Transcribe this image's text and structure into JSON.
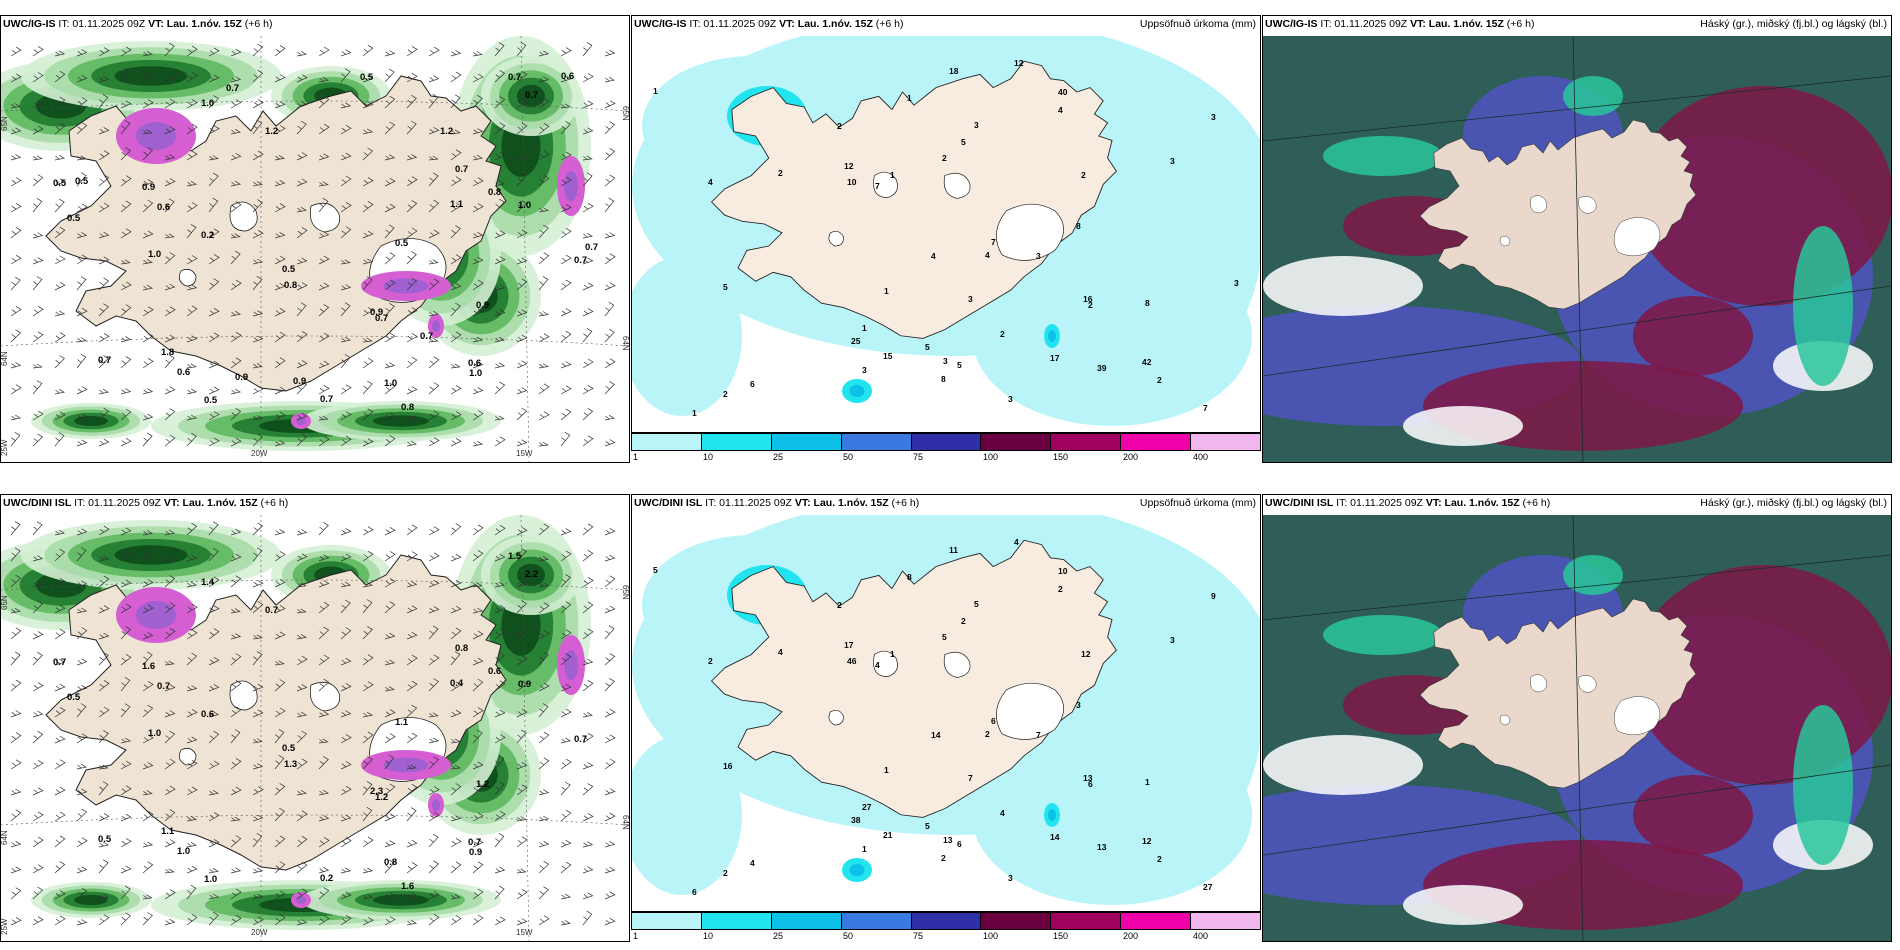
{
  "panels": {
    "p1": {
      "title_bold": "UWC/IG-IS",
      "run": " IT: 01.11.2025 09Z ",
      "vt_label": "VT:",
      "vt_value": " Lau. 1.nóv. 15Z",
      "lead": " (+6 h)",
      "right": ""
    },
    "p2": {
      "title_bold": "UWC/IG-IS",
      "run": " IT: 01.11.2025 09Z ",
      "vt_label": "VT:",
      "vt_value": " Lau. 1.nóv. 15Z",
      "lead": " (+6 h)",
      "right": "Uppsöfnuð úrkoma (mm)"
    },
    "p3": {
      "title_bold": "UWC/IG-IS",
      "run": " IT: 01.11.2025 09Z ",
      "vt_label": "VT:",
      "vt_value": " Lau. 1.nóv. 15Z",
      "lead": " (+6 h)",
      "right": "Háský (gr.), miðský (fj.bl.) og lágský (bl.)"
    },
    "p4": {
      "title_bold": "UWC/DINI ISL",
      "run": " IT: 01.11.2025 09Z ",
      "vt_label": "VT:",
      "vt_value": " Lau. 1.nóv. 15Z",
      "lead": " (+6 h)",
      "right": ""
    },
    "p5": {
      "title_bold": "UWC/DINI ISL",
      "run": " IT: 01.11.2025 09Z ",
      "vt_label": "VT:",
      "vt_value": " Lau. 1.nóv. 15Z",
      "lead": " (+6 h)",
      "right": "Uppsöfnuð úrkoma (mm)"
    },
    "p6": {
      "title_bold": "UWC/DINI ISL",
      "run": " IT: 01.11.2025 09Z ",
      "vt_label": "VT:",
      "vt_value": " Lau. 1.nóv. 15Z",
      "lead": " (+6 h)",
      "right": "Háský (gr.), miðský (fj.bl.) og lágský (bl.)"
    }
  },
  "coords": {
    "lat65": "65N",
    "lat64": "64N",
    "lon25": "25W",
    "lon20": "20W",
    "lon15": "15W"
  },
  "colorbar": {
    "labels": [
      "1",
      "10",
      "25",
      "50",
      "75",
      "100",
      "150",
      "200",
      "400"
    ],
    "colors": [
      "#b8f4f8",
      "#22e4ef",
      "#0cc0e8",
      "#3a7ae0",
      "#2f2fa8",
      "#6a0040",
      "#a0005e",
      "#f000a8",
      "#f2b6ee"
    ]
  },
  "wind_values_top": [
    "0.8",
    "1.0",
    "1.8",
    "0.9",
    "0.8",
    "1.0",
    "0.7",
    "0.2",
    "0.8",
    "0.6",
    "0.7",
    "0.5",
    "0.5",
    "0.9",
    "1.1",
    "0.7",
    "0.5",
    "0.7",
    "0.9",
    "1.0",
    "0.6",
    "0.7",
    "0.5",
    "1.0",
    "0.5",
    "0.7",
    "1.0",
    "0.6",
    "0.7",
    "1.2",
    "0.7",
    "0.6",
    "1.2",
    "0.9",
    "0.7",
    "0.9",
    "0.5",
    "0.5",
    "0.7"
  ],
  "wind_values_bottom": [
    "1.6",
    "1.4",
    "1.1",
    "1.6",
    "0.6",
    "0.8",
    "0.7",
    "0.6",
    "1.3",
    "1.0",
    "0.5",
    "0.7",
    "0.5",
    "2.3",
    "0.4",
    "1.5",
    "0.5",
    "2.2",
    "1.2",
    "0.9",
    "0.7",
    "1.2",
    "1.0",
    "0.9",
    "1.1",
    "0.8",
    "1.0",
    "0.7",
    "0.2",
    "0.7"
  ],
  "precip_values_top": [
    "2",
    "8",
    "7",
    "3",
    "1",
    "12",
    "42",
    "40",
    "39",
    "25",
    "7",
    "10",
    "15",
    "18",
    "17",
    "12",
    "16",
    "5",
    "4",
    "3",
    "1",
    "6",
    "8",
    "3",
    "2",
    "4",
    "1",
    "5",
    "3",
    "2",
    "2",
    "1",
    "3",
    "1",
    "4",
    "3",
    "3",
    "2",
    "4",
    "5",
    "2",
    "1",
    "2",
    "3",
    "8",
    "7",
    "2",
    "5",
    "3"
  ],
  "precip_values_bottom": [
    "2",
    "1",
    "6",
    "7",
    "8",
    "4",
    "12",
    "10",
    "13",
    "38",
    "27",
    "46",
    "21",
    "11",
    "14",
    "17",
    "13",
    "16",
    "14",
    "9",
    "5",
    "4",
    "2",
    "7",
    "6",
    "2",
    "1",
    "2",
    "3",
    "4",
    "2",
    "1",
    "5",
    "6",
    "2",
    "3",
    "13",
    "12",
    "2",
    "5",
    "4",
    "27",
    "2",
    "1",
    "3",
    "4",
    "5",
    "6"
  ]
}
